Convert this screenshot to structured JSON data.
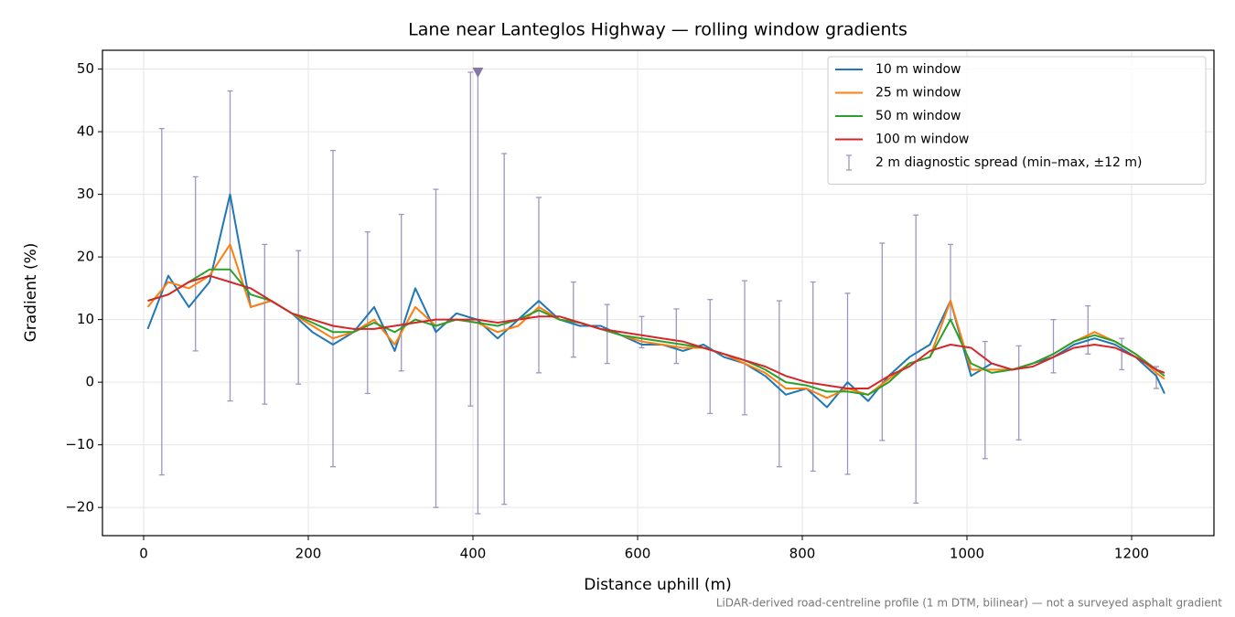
{
  "chart_data": {
    "type": "line",
    "title": "Lane near Lanteglos Highway — rolling window gradients",
    "xlabel": "Distance uphill (m)",
    "ylabel": "Gradient (%)",
    "footnote": "LiDAR-derived road-centreline profile (1 m DTM, bilinear) — not a surveyed asphalt gradient",
    "xlim": [
      -50,
      1300
    ],
    "ylim": [
      -24.5,
      53
    ],
    "xticks": [
      0,
      200,
      400,
      600,
      800,
      1000,
      1200
    ],
    "yticks": [
      {
        "value": -20,
        "label": "−20"
      },
      {
        "value": -10,
        "label": "−10"
      },
      0,
      10,
      20,
      30,
      40,
      50
    ],
    "grid": true,
    "legend": "upper right",
    "x": [
      5,
      30,
      55,
      80,
      105,
      130,
      155,
      180,
      205,
      230,
      255,
      280,
      305,
      330,
      355,
      380,
      405,
      430,
      455,
      480,
      505,
      530,
      555,
      580,
      605,
      630,
      655,
      680,
      705,
      730,
      755,
      780,
      805,
      830,
      855,
      880,
      905,
      930,
      955,
      980,
      1005,
      1030,
      1055,
      1080,
      1105,
      1130,
      1155,
      1180,
      1205,
      1230,
      1240
    ],
    "series": [
      {
        "name": "10 m window",
        "color": "#1f77b4",
        "values": [
          8.5,
          17,
          12,
          16,
          30,
          12,
          13,
          11,
          8,
          6,
          8,
          12,
          5,
          15,
          8,
          11,
          10,
          7,
          10,
          13,
          10,
          9,
          9,
          7.5,
          6,
          6,
          5,
          6,
          4,
          3,
          1,
          -2,
          -1,
          -4,
          0,
          -3,
          1,
          4,
          6,
          13,
          1,
          3,
          2,
          3,
          4,
          6,
          7,
          6,
          4,
          1,
          -1.8
        ]
      },
      {
        "name": "25 m window",
        "color": "#ff7f0e",
        "values": [
          12,
          16,
          15,
          17,
          22,
          12,
          13,
          11,
          9,
          7,
          8,
          10,
          6,
          12,
          9,
          10,
          9.5,
          8,
          9,
          12,
          10,
          9.5,
          8.5,
          7.5,
          6.5,
          6,
          5.5,
          5.5,
          4.5,
          3,
          1.5,
          -1,
          -1,
          -2.5,
          -1,
          -2,
          0.5,
          3,
          4,
          13,
          2,
          2,
          2,
          3,
          4.5,
          6.5,
          8,
          6.5,
          4.5,
          1.5,
          0.5
        ]
      },
      {
        "name": "50 m window",
        "color": "#2ca02c",
        "values": [
          13,
          14,
          16,
          18,
          18,
          14,
          13,
          11,
          9.5,
          8,
          8,
          9.5,
          8,
          10,
          9,
          10,
          9.5,
          9,
          10,
          11.5,
          10,
          9.5,
          8.5,
          7.5,
          7,
          6.5,
          6,
          5.5,
          4.5,
          3.5,
          2,
          0,
          -0.5,
          -1.5,
          -1.5,
          -2,
          0,
          3,
          4,
          10,
          3,
          1.5,
          2,
          3,
          4.5,
          6.5,
          7.5,
          6.5,
          4.5,
          2,
          1
        ]
      },
      {
        "name": "100 m window",
        "color": "#d62728",
        "values": [
          13,
          14,
          16,
          17,
          16,
          15,
          13,
          11,
          10,
          9,
          8.5,
          8.5,
          9,
          9.5,
          10,
          10,
          10,
          9.5,
          10,
          10.5,
          10.5,
          9.5,
          8.5,
          8,
          7.5,
          7,
          6.5,
          5.5,
          4.5,
          3.5,
          2.5,
          1,
          0,
          -0.5,
          -1,
          -1,
          1,
          2.5,
          5,
          6,
          5.5,
          3,
          2,
          2.5,
          4,
          5.5,
          6,
          5.5,
          4,
          2,
          1.5
        ]
      }
    ],
    "errorbars": {
      "name": "2 m diagnostic spread (min–max, ±12 m)",
      "color": "#9d97c0",
      "x": [
        22,
        63,
        105,
        147,
        188,
        230,
        272,
        313,
        355,
        397,
        406,
        438,
        480,
        522,
        563,
        605,
        647,
        688,
        730,
        772,
        813,
        855,
        897,
        938,
        980,
        1022,
        1063,
        1105,
        1147,
        1188,
        1230
      ],
      "high": [
        40.5,
        32.8,
        46.5,
        22,
        21,
        37,
        24,
        26.8,
        30.8,
        49.5,
        50,
        36.5,
        29.5,
        16,
        12.4,
        10.5,
        11.7,
        13.2,
        16.2,
        13,
        16,
        14.2,
        22.2,
        26.7,
        22,
        6.5,
        5.8,
        10,
        12.2,
        7,
        2.5
      ],
      "low": [
        -14.8,
        5,
        -3,
        -3.5,
        -0.3,
        -13.5,
        -1.8,
        1.8,
        -20,
        -3.8,
        -21,
        -19.5,
        1.5,
        4,
        3,
        5.5,
        3,
        -5,
        -5.2,
        -13.5,
        -14.2,
        -14.7,
        -9.3,
        -19.3,
        10,
        -12.2,
        -9.2,
        1.5,
        4.5,
        2,
        -1
      ]
    },
    "markers": [
      {
        "x": 406,
        "y": 49.5,
        "color": "#8378a8"
      }
    ]
  }
}
